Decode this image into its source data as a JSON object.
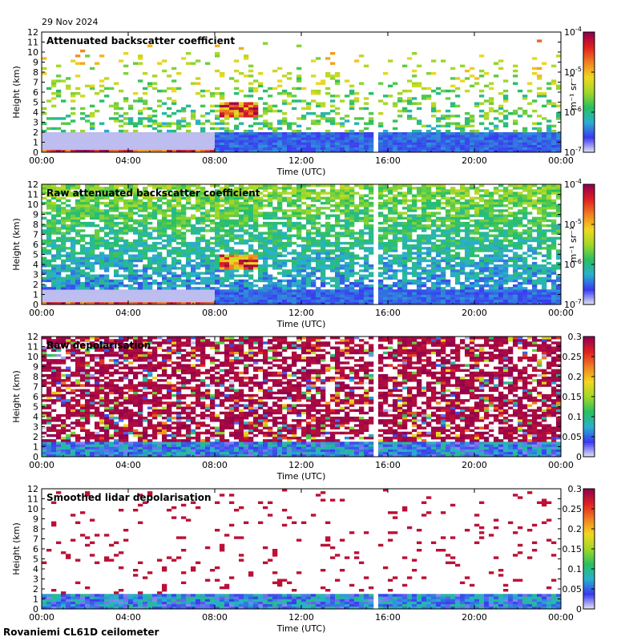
{
  "header": {
    "date": "29 Nov 2024"
  },
  "footer": {
    "station": "Rovaniemi CL61D ceilometer"
  },
  "shared_axes": {
    "x_ticks": [
      "00:00",
      "04:00",
      "08:00",
      "12:00",
      "16:00",
      "20:00",
      "00:00"
    ],
    "x_label": "Time (UTC)",
    "y_ticks": [
      "0",
      "1",
      "2",
      "3",
      "4",
      "5",
      "6",
      "7",
      "8",
      "9",
      "10",
      "11",
      "12"
    ],
    "y_label": "Height (km)"
  },
  "colors": {
    "bad_data": "#ffffff",
    "below_threshold": "#e8e8ee",
    "scale": [
      "#e6e6f0",
      "#3a3af0",
      "#2ab0d0",
      "#28c060",
      "#a0d828",
      "#f0d820",
      "#f08020",
      "#e02020",
      "#900050"
    ]
  },
  "chart_data": [
    {
      "type": "heatmap",
      "title": "Attenuated backscatter coefficient",
      "xlabel": "Time (UTC)",
      "ylabel": "Height (km)",
      "xlim": [
        "00:00",
        "24:00"
      ],
      "ylim": [
        0,
        12
      ],
      "x_ticks": [
        "00:00",
        "04:00",
        "08:00",
        "12:00",
        "16:00",
        "20:00",
        "00:00"
      ],
      "y_ticks": [
        0,
        1,
        2,
        3,
        4,
        5,
        6,
        7,
        8,
        9,
        10,
        11,
        12
      ],
      "colorbar": {
        "scale": "log",
        "min": 1e-07,
        "max": 0.0001,
        "ticks": [
          {
            "base": "10",
            "exp": "-7"
          },
          {
            "base": "10",
            "exp": "-6"
          },
          {
            "base": "10",
            "exp": "-5"
          },
          {
            "base": "10",
            "exp": "-4"
          }
        ],
        "unit_label": "m⁻¹ sr⁻¹"
      },
      "features": {
        "boundary_layer_top_km": 2.0,
        "cloud_layer": {
          "start": "08:10",
          "end": "10:00",
          "base_km": 3.6,
          "top_km": 4.9
        },
        "data_gap": "15:30",
        "surface_signal": "strong near ground 00:00–08:00"
      }
    },
    {
      "type": "heatmap",
      "title": "Raw attenuated backscatter coefficient",
      "xlabel": "Time (UTC)",
      "ylabel": "Height (km)",
      "xlim": [
        "00:00",
        "24:00"
      ],
      "ylim": [
        0,
        12
      ],
      "x_ticks": [
        "00:00",
        "04:00",
        "08:00",
        "12:00",
        "16:00",
        "20:00",
        "00:00"
      ],
      "y_ticks": [
        0,
        1,
        2,
        3,
        4,
        5,
        6,
        7,
        8,
        9,
        10,
        11,
        12
      ],
      "colorbar": {
        "scale": "log",
        "min": 1e-07,
        "max": 0.0001,
        "ticks": [
          {
            "base": "10",
            "exp": "-7"
          },
          {
            "base": "10",
            "exp": "-6"
          },
          {
            "base": "10",
            "exp": "-5"
          },
          {
            "base": "10",
            "exp": "-4"
          }
        ],
        "unit_label": "m⁻¹ sr⁻¹"
      },
      "features": {
        "cloud_layer": {
          "start": "08:10",
          "end": "10:00",
          "base_km": 3.6,
          "top_km": 4.9
        },
        "data_gap": "15:30"
      }
    },
    {
      "type": "heatmap",
      "title": "Raw depolarisation",
      "xlabel": "Time (UTC)",
      "ylabel": "Height (km)",
      "xlim": [
        "00:00",
        "24:00"
      ],
      "ylim": [
        0,
        12
      ],
      "x_ticks": [
        "00:00",
        "04:00",
        "08:00",
        "12:00",
        "16:00",
        "20:00",
        "00:00"
      ],
      "y_ticks": [
        0,
        1,
        2,
        3,
        4,
        5,
        6,
        7,
        8,
        9,
        10,
        11,
        12
      ],
      "colorbar": {
        "scale": "linear",
        "min": 0,
        "max": 0.3,
        "ticks": [
          "0",
          "0.05",
          "0.1",
          "0.15",
          "0.2",
          "0.25",
          "0.3"
        ]
      },
      "features": {
        "data_gap": "15:30"
      }
    },
    {
      "type": "heatmap",
      "title": "Smoothed lidar depolarisation",
      "xlabel": "Time (UTC)",
      "ylabel": "Height (km)",
      "xlim": [
        "00:00",
        "24:00"
      ],
      "ylim": [
        0,
        12
      ],
      "x_ticks": [
        "00:00",
        "04:00",
        "08:00",
        "12:00",
        "16:00",
        "20:00",
        "00:00"
      ],
      "y_ticks": [
        0,
        1,
        2,
        3,
        4,
        5,
        6,
        7,
        8,
        9,
        10,
        11,
        12
      ],
      "colorbar": {
        "scale": "linear",
        "min": 0,
        "max": 0.3,
        "ticks": [
          "0",
          "0.05",
          "0.1",
          "0.15",
          "0.2",
          "0.25",
          "0.3"
        ]
      },
      "features": {
        "data_gap": "15:30"
      }
    }
  ]
}
